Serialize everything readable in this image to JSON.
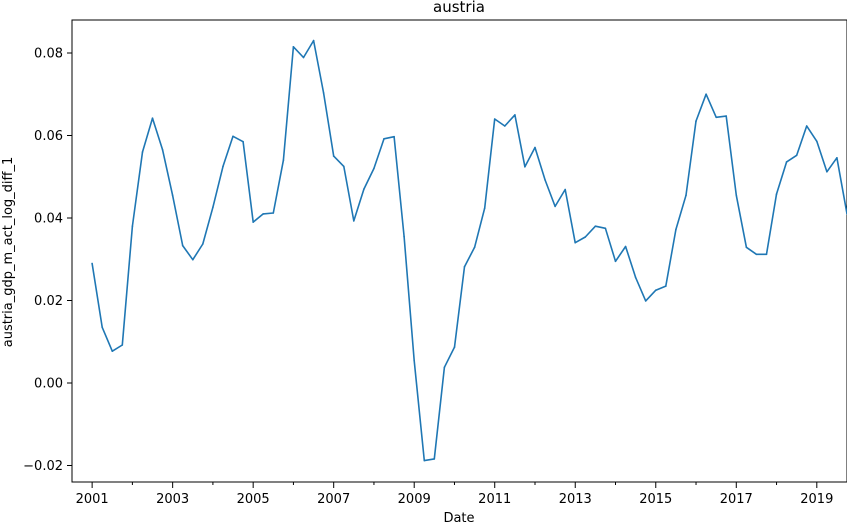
{
  "chart_data": {
    "type": "line",
    "title": "austria",
    "xlabel": "Date",
    "ylabel": "austria_gdp_m_act_log_diff_1",
    "x_ticks": [
      "2001",
      "2003",
      "2005",
      "2007",
      "2009",
      "2011",
      "2013",
      "2015",
      "2017",
      "2019"
    ],
    "y_ticks": [
      "−0.02",
      "0.00",
      "0.02",
      "0.04",
      "0.06",
      "0.08"
    ],
    "xlim": [
      "2000-07-01",
      "2019-10-01"
    ],
    "ylim": [
      -0.024,
      0.088
    ],
    "grid": false,
    "series_color": "#1f77b4",
    "series": [
      {
        "x": [
          "2001-01",
          "2001-04",
          "2001-07",
          "2001-10",
          "2002-01",
          "2002-04",
          "2002-07",
          "2002-10",
          "2003-01",
          "2003-04",
          "2003-07",
          "2003-10",
          "2004-01",
          "2004-04",
          "2004-07",
          "2004-10",
          "2005-01",
          "2005-04",
          "2005-07",
          "2005-10",
          "2006-01",
          "2006-04",
          "2006-07",
          "2006-10",
          "2007-01",
          "2007-04",
          "2007-07",
          "2007-10",
          "2008-01",
          "2008-04",
          "2008-07",
          "2008-10",
          "2009-01",
          "2009-04",
          "2009-07",
          "2009-10",
          "2010-01",
          "2010-04",
          "2010-07",
          "2010-10",
          "2011-01",
          "2011-04",
          "2011-07",
          "2011-10",
          "2012-01",
          "2012-04",
          "2012-07",
          "2012-10",
          "2013-01",
          "2013-04",
          "2013-07",
          "2013-10",
          "2014-01",
          "2014-04",
          "2014-07",
          "2014-10",
          "2015-01",
          "2015-04",
          "2015-07",
          "2015-10",
          "2016-01",
          "2016-04",
          "2016-07",
          "2016-10",
          "2017-01",
          "2017-04",
          "2017-07",
          "2017-10",
          "2018-01",
          "2018-04",
          "2018-07",
          "2018-10",
          "2019-01",
          "2019-04",
          "2019-07",
          "2019-10"
        ],
        "values": [
          0.029,
          0.0135,
          0.0077,
          0.0092,
          0.038,
          0.056,
          0.0642,
          0.0565,
          0.0455,
          0.0333,
          0.0299,
          0.0337,
          0.0426,
          0.0525,
          0.0598,
          0.0585,
          0.039,
          0.041,
          0.0412,
          0.054,
          0.0815,
          0.0789,
          0.083,
          0.0703,
          0.055,
          0.0525,
          0.0393,
          0.047,
          0.052,
          0.0592,
          0.0597,
          0.0355,
          0.0054,
          -0.0188,
          -0.0184,
          0.0038,
          0.0087,
          0.0282,
          0.0329,
          0.0424,
          0.064,
          0.0623,
          0.065,
          0.0524,
          0.0571,
          0.0492,
          0.0428,
          0.0469,
          0.034,
          0.0354,
          0.038,
          0.0375,
          0.0295,
          0.0331,
          0.0256,
          0.0199,
          0.0225,
          0.0235,
          0.0372,
          0.0455,
          0.0635,
          0.07,
          0.0644,
          0.0647,
          0.0455,
          0.0329,
          0.0312,
          0.0312,
          0.0458,
          0.0536,
          0.0552,
          0.0623,
          0.0586,
          0.0512,
          0.0546,
          0.041
        ]
      }
    ]
  }
}
